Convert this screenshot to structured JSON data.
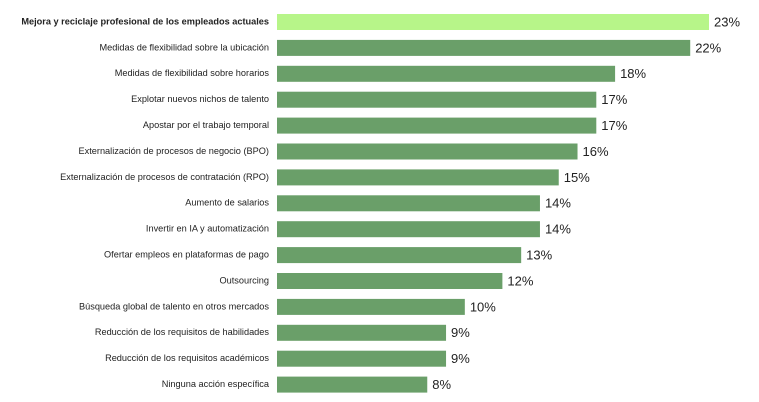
{
  "chart_data": {
    "type": "bar",
    "orientation": "horizontal",
    "title": "",
    "xlabel": "",
    "ylabel": "",
    "xlim": [
      0,
      23
    ],
    "grid": false,
    "legend": "none",
    "categories": [
      "Mejora y reciclaje profesional de los empleados actuales",
      "Medidas de flexibilidad sobre la ubicación",
      "Medidas de flexibilidad sobre horarios",
      "Explotar nuevos nichos de talento",
      "Apostar por el trabajo temporal",
      "Externalización de procesos de negocio (BPO)",
      "Externalización de procesos de contratación (RPO)",
      "Aumento de salarios",
      "Invertir en IA y automatización",
      "Ofertar empleos en plataformas de pago",
      "Outsourcing",
      "Búsqueda global de talento en otros mercados",
      "Reducción de los requisitos de habilidades",
      "Reducción de los requisitos académicos",
      "Ninguna acción específica"
    ],
    "values": [
      23,
      22,
      18,
      17,
      17,
      16,
      15,
      14,
      14,
      13,
      12,
      10,
      9,
      9,
      8
    ],
    "value_labels": [
      "23%",
      "22%",
      "18%",
      "17%",
      "17%",
      "16%",
      "15%",
      "14%",
      "14%",
      "13%",
      "12%",
      "10%",
      "9%",
      "9%",
      "8%"
    ],
    "highlight_index": 0,
    "colors": {
      "highlight": "#b7f589",
      "bar": "#6a9f69",
      "text": "#222222"
    }
  }
}
